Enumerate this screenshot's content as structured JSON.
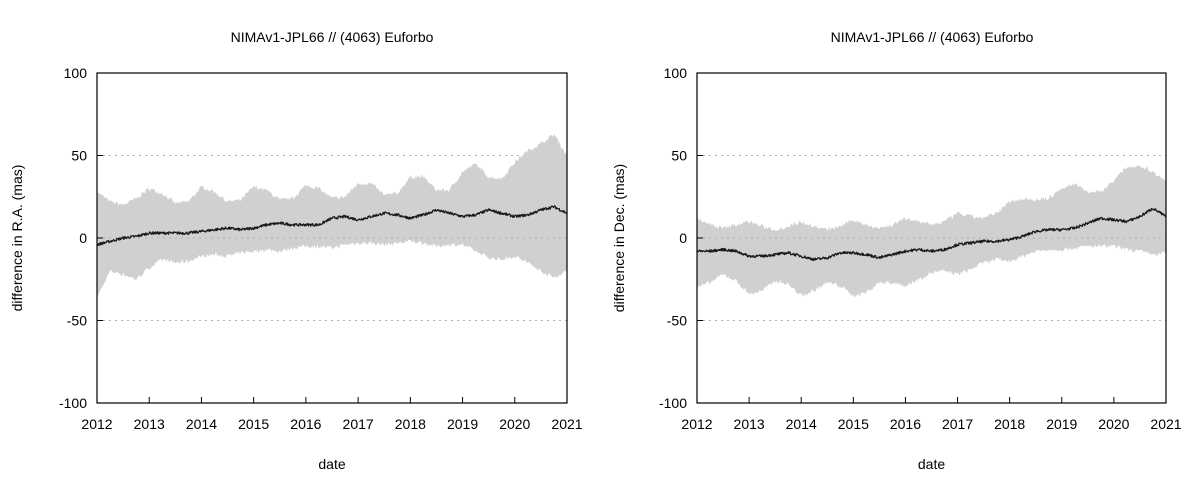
{
  "colors": {
    "band": "#d0d0d0",
    "series": "#1a1a1a",
    "grid": "#b0b0b0"
  },
  "chart_data": [
    {
      "type": "area",
      "title": "NIMAv1-JPL66 // (4063) Euforbo",
      "xlabel": "date",
      "ylabel": "difference in R.A. (mas)",
      "xlim": [
        2012,
        2021
      ],
      "ylim": [
        -100,
        100
      ],
      "xticks": [
        2012,
        2013,
        2014,
        2015,
        2016,
        2017,
        2018,
        2019,
        2020,
        2021
      ],
      "yticks": [
        -100,
        -50,
        0,
        50,
        100
      ],
      "ytick_labels": [
        "-100",
        "-50",
        "0",
        "50",
        "100"
      ],
      "grid": "horizontal dotted",
      "legend": "none",
      "series": [
        {
          "role": "center",
          "x": [
            2012.0,
            2012.25,
            2012.5,
            2012.75,
            2013.0,
            2013.25,
            2013.5,
            2013.75,
            2014.0,
            2014.25,
            2014.5,
            2014.75,
            2015.0,
            2015.25,
            2015.5,
            2015.75,
            2016.0,
            2016.25,
            2016.5,
            2016.75,
            2017.0,
            2017.25,
            2017.5,
            2017.75,
            2018.0,
            2018.25,
            2018.5,
            2018.75,
            2019.0,
            2019.25,
            2019.5,
            2019.75,
            2020.0,
            2020.25,
            2020.5,
            2020.75,
            2021.0
          ],
          "y": [
            -4,
            -2,
            0,
            1,
            3,
            3,
            3,
            3,
            4,
            5,
            6,
            5,
            6,
            8,
            9,
            8,
            8,
            8,
            12,
            13,
            11,
            13,
            15,
            14,
            12,
            14,
            17,
            15,
            13,
            14,
            17,
            15,
            13,
            14,
            17,
            19,
            15
          ]
        },
        {
          "role": "upper",
          "x": [
            2012.0,
            2012.25,
            2012.5,
            2012.75,
            2013.0,
            2013.25,
            2013.5,
            2013.75,
            2014.0,
            2014.25,
            2014.5,
            2014.75,
            2015.0,
            2015.25,
            2015.5,
            2015.75,
            2016.0,
            2016.25,
            2016.5,
            2016.75,
            2017.0,
            2017.25,
            2017.5,
            2017.75,
            2018.0,
            2018.25,
            2018.5,
            2018.75,
            2019.0,
            2019.25,
            2019.5,
            2019.75,
            2020.0,
            2020.25,
            2020.5,
            2020.75,
            2021.0
          ],
          "y": [
            28,
            22,
            20,
            24,
            30,
            27,
            21,
            22,
            31,
            28,
            22,
            23,
            31,
            29,
            23,
            24,
            32,
            30,
            24,
            25,
            33,
            33,
            26,
            27,
            37,
            37,
            29,
            29,
            40,
            45,
            37,
            36,
            46,
            53,
            57,
            63,
            50
          ]
        },
        {
          "role": "lower",
          "x": [
            2012.0,
            2012.25,
            2012.5,
            2012.75,
            2013.0,
            2013.25,
            2013.5,
            2013.75,
            2014.0,
            2014.25,
            2014.5,
            2014.75,
            2015.0,
            2015.25,
            2015.5,
            2015.75,
            2016.0,
            2016.25,
            2016.5,
            2016.75,
            2017.0,
            2017.25,
            2017.5,
            2017.75,
            2018.0,
            2018.25,
            2018.5,
            2018.75,
            2019.0,
            2019.25,
            2019.5,
            2019.75,
            2020.0,
            2020.25,
            2020.5,
            2020.75,
            2021.0
          ],
          "y": [
            -36,
            -20,
            -22,
            -25,
            -18,
            -13,
            -15,
            -14,
            -11,
            -10,
            -11,
            -9,
            -8,
            -7,
            -8,
            -6,
            -5,
            -5,
            -6,
            -4,
            -3,
            -3,
            -4,
            -3,
            -2,
            -3,
            -5,
            -4,
            -4,
            -8,
            -12,
            -13,
            -11,
            -15,
            -20,
            -24,
            -20
          ]
        }
      ]
    },
    {
      "type": "area",
      "title": "NIMAv1-JPL66 // (4063) Euforbo",
      "xlabel": "date",
      "ylabel": "difference in Dec. (mas)",
      "xlim": [
        2012,
        2021
      ],
      "ylim": [
        -100,
        100
      ],
      "xticks": [
        2012,
        2013,
        2014,
        2015,
        2016,
        2017,
        2018,
        2019,
        2020,
        2021
      ],
      "yticks": [
        -100,
        -50,
        0,
        50,
        100
      ],
      "ytick_labels": [
        "-100",
        "-50",
        "0",
        "50",
        "100"
      ],
      "grid": "horizontal dotted",
      "legend": "none",
      "series": [
        {
          "role": "center",
          "x": [
            2012.0,
            2012.25,
            2012.5,
            2012.75,
            2013.0,
            2013.25,
            2013.5,
            2013.75,
            2014.0,
            2014.25,
            2014.5,
            2014.75,
            2015.0,
            2015.25,
            2015.5,
            2015.75,
            2016.0,
            2016.25,
            2016.5,
            2016.75,
            2017.0,
            2017.25,
            2017.5,
            2017.75,
            2018.0,
            2018.25,
            2018.5,
            2018.75,
            2019.0,
            2019.25,
            2019.5,
            2019.75,
            2020.0,
            2020.25,
            2020.5,
            2020.75,
            2021.0
          ],
          "y": [
            -8,
            -8,
            -7,
            -8,
            -11,
            -11,
            -10,
            -9,
            -11,
            -13,
            -12,
            -9,
            -9,
            -10,
            -12,
            -10,
            -8,
            -7,
            -8,
            -7,
            -4,
            -3,
            -2,
            -2,
            -1,
            1,
            4,
            5,
            5,
            6,
            9,
            12,
            11,
            10,
            13,
            18,
            13
          ]
        },
        {
          "role": "upper",
          "x": [
            2012.0,
            2012.25,
            2012.5,
            2012.75,
            2013.0,
            2013.25,
            2013.5,
            2013.75,
            2014.0,
            2014.25,
            2014.5,
            2014.75,
            2015.0,
            2015.25,
            2015.5,
            2015.75,
            2016.0,
            2016.25,
            2016.5,
            2016.75,
            2017.0,
            2017.25,
            2017.5,
            2017.75,
            2018.0,
            2018.25,
            2018.5,
            2018.75,
            2019.0,
            2019.25,
            2019.5,
            2019.75,
            2020.0,
            2020.25,
            2020.5,
            2020.75,
            2021.0
          ],
          "y": [
            12,
            8,
            6,
            8,
            10,
            7,
            5,
            7,
            10,
            7,
            5,
            7,
            11,
            8,
            6,
            8,
            12,
            10,
            8,
            10,
            15,
            13,
            12,
            15,
            22,
            24,
            23,
            24,
            30,
            33,
            28,
            28,
            35,
            43,
            44,
            40,
            35
          ]
        },
        {
          "role": "lower",
          "x": [
            2012.0,
            2012.25,
            2012.5,
            2012.75,
            2013.0,
            2013.25,
            2013.5,
            2013.75,
            2014.0,
            2014.25,
            2014.5,
            2014.75,
            2015.0,
            2015.25,
            2015.5,
            2015.75,
            2016.0,
            2016.25,
            2016.5,
            2016.75,
            2017.0,
            2017.25,
            2017.5,
            2017.75,
            2018.0,
            2018.25,
            2018.5,
            2018.75,
            2019.0,
            2019.25,
            2019.5,
            2019.75,
            2020.0,
            2020.25,
            2020.5,
            2020.75,
            2021.0
          ],
          "y": [
            -30,
            -27,
            -22,
            -26,
            -34,
            -32,
            -26,
            -28,
            -35,
            -32,
            -27,
            -29,
            -35,
            -33,
            -27,
            -27,
            -29,
            -25,
            -21,
            -20,
            -22,
            -19,
            -15,
            -13,
            -14,
            -11,
            -8,
            -7,
            -7,
            -6,
            -5,
            -5,
            -5,
            -7,
            -8,
            -10,
            -9
          ]
        }
      ]
    }
  ]
}
